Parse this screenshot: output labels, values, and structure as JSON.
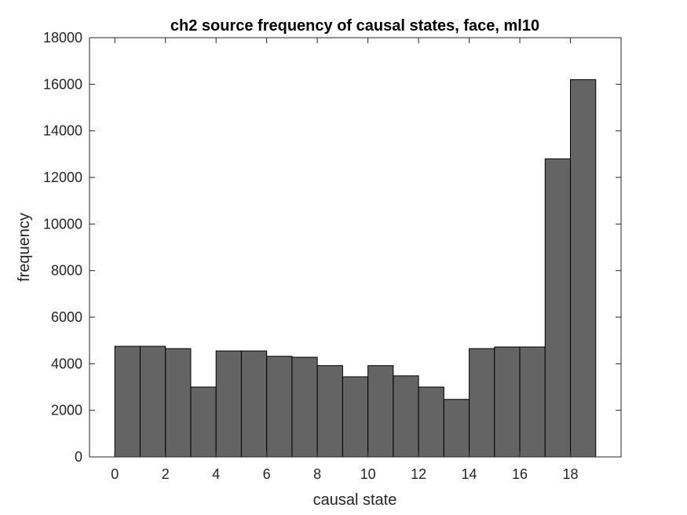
{
  "chart_data": {
    "type": "bar",
    "title": "ch2 source frequency of causal states, face, ml10",
    "xlabel": "causal state",
    "ylabel": "frequency",
    "bin_edges": [
      0,
      1,
      2,
      3,
      4,
      5,
      6,
      7,
      8,
      9,
      10,
      11,
      12,
      13,
      14,
      15,
      16,
      17,
      18,
      19
    ],
    "values": [
      4750,
      4750,
      4650,
      3000,
      4550,
      4550,
      4320,
      4280,
      3920,
      3440,
      3920,
      3480,
      3000,
      2470,
      4650,
      4720,
      4720,
      12800,
      16200
    ],
    "xlim": [
      -1,
      20
    ],
    "ylim": [
      0,
      18000
    ],
    "xticks": [
      0,
      2,
      4,
      6,
      8,
      10,
      12,
      14,
      16,
      18
    ],
    "yticks": [
      0,
      2000,
      4000,
      6000,
      8000,
      10000,
      12000,
      14000,
      16000,
      18000
    ],
    "grid": false,
    "bar_color": "#646464",
    "edge_color": "#000000"
  }
}
